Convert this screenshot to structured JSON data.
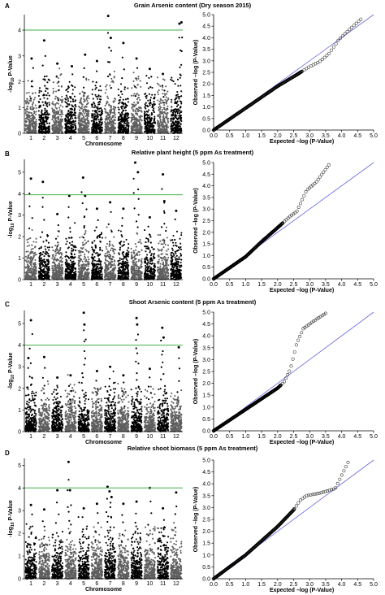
{
  "chart_data": [
    {
      "panel": "A",
      "title": "Grain Arsenic content (Dry season 2015)",
      "manhattan": {
        "type": "scatter",
        "xlabel": "Chromosome",
        "ylabel_main": "-log",
        "ylabel_sub": "10",
        "ylabel_tail": " P-Value",
        "categories": [
          "1",
          "2",
          "3",
          "4",
          "5",
          "6",
          "7",
          "8",
          "9",
          "10",
          "11",
          "12"
        ],
        "ylim": [
          0,
          4.6
        ],
        "yticks": [
          0,
          1,
          2,
          3,
          4
        ],
        "threshold": 4.0,
        "colors": [
          "#5e5e5e",
          "#000000"
        ],
        "peaks": [
          {
            "chr": 1,
            "pos": 0.55,
            "y": 2.9
          },
          {
            "chr": 2,
            "pos": 0.5,
            "y": 3.6
          },
          {
            "chr": 3,
            "pos": 0.5,
            "y": 2.7
          },
          {
            "chr": 4,
            "pos": 0.6,
            "y": 2.6
          },
          {
            "chr": 5,
            "pos": 0.6,
            "y": 3.05
          },
          {
            "chr": 6,
            "pos": 0.5,
            "y": 2.8
          },
          {
            "chr": 7,
            "pos": 0.35,
            "y": 4.55
          },
          {
            "chr": 7,
            "pos": 0.55,
            "y": 3.7
          },
          {
            "chr": 8,
            "pos": 0.5,
            "y": 3.5
          },
          {
            "chr": 9,
            "pos": 0.5,
            "y": 2.9
          },
          {
            "chr": 10,
            "pos": 0.5,
            "y": 2.5
          },
          {
            "chr": 11,
            "pos": 0.5,
            "y": 2.3
          },
          {
            "chr": 12,
            "pos": 0.75,
            "y": 4.25
          },
          {
            "chr": 12,
            "pos": 0.9,
            "y": 4.3
          }
        ]
      },
      "qq": {
        "type": "scatter",
        "xlabel": "Expected –log (P-Value)",
        "ylabel": "Observed –log (P-Value)",
        "xlim": [
          0,
          5.0
        ],
        "ylim": [
          0,
          5.0
        ],
        "ticks": [
          "0.0",
          "0.5",
          "1.0",
          "1.5",
          "2.0",
          "2.5",
          "3.0",
          "3.5",
          "4.0",
          "4.5",
          "5.0"
        ],
        "curve": [
          [
            0,
            0
          ],
          [
            1.0,
            0.95
          ],
          [
            2.0,
            1.9
          ],
          [
            2.6,
            2.4
          ],
          [
            3.0,
            2.75
          ],
          [
            3.3,
            2.95
          ],
          [
            3.6,
            3.3
          ],
          [
            3.9,
            3.9
          ],
          [
            4.2,
            4.3
          ],
          [
            4.6,
            4.8
          ]
        ]
      }
    },
    {
      "panel": "B",
      "title": "Relative plant height (5 ppm As treatment)",
      "manhattan": {
        "type": "scatter",
        "xlabel": "",
        "ylabel_main": "-log",
        "ylabel_sub": "10",
        "ylabel_tail": " P-Value",
        "categories": [
          "1",
          "2",
          "3",
          "4",
          "5",
          "6",
          "7",
          "8",
          "9",
          "10",
          "11",
          "12"
        ],
        "ylim": [
          0,
          5.6
        ],
        "yticks": [
          0,
          1,
          2,
          3,
          4,
          5
        ],
        "threshold": 3.95,
        "colors": [
          "#5e5e5e",
          "#000000"
        ],
        "peaks": [
          {
            "chr": 1,
            "pos": 0.5,
            "y": 4.7
          },
          {
            "chr": 2,
            "pos": 0.4,
            "y": 4.55
          },
          {
            "chr": 3,
            "pos": 0.5,
            "y": 3.05
          },
          {
            "chr": 4,
            "pos": 0.4,
            "y": 3.9
          },
          {
            "chr": 5,
            "pos": 0.45,
            "y": 4.75
          },
          {
            "chr": 5,
            "pos": 0.6,
            "y": 3.9
          },
          {
            "chr": 6,
            "pos": 0.5,
            "y": 3.3
          },
          {
            "chr": 7,
            "pos": 0.5,
            "y": 3.6
          },
          {
            "chr": 8,
            "pos": 0.5,
            "y": 3.3
          },
          {
            "chr": 9,
            "pos": 0.4,
            "y": 5.45
          },
          {
            "chr": 9,
            "pos": 0.6,
            "y": 5.0
          },
          {
            "chr": 10,
            "pos": 0.5,
            "y": 2.9
          },
          {
            "chr": 11,
            "pos": 0.5,
            "y": 4.9
          },
          {
            "chr": 11,
            "pos": 0.6,
            "y": 3.65
          },
          {
            "chr": 12,
            "pos": 0.5,
            "y": 3.2
          }
        ]
      },
      "qq": {
        "type": "scatter",
        "xlabel": "Expected –log (P-Value)",
        "ylabel": "Observed –log (P-Value)",
        "xlim": [
          0,
          5.0
        ],
        "ylim": [
          0,
          5.0
        ],
        "ticks": [
          "0.0",
          "0.5",
          "1.0",
          "1.5",
          "2.0",
          "2.5",
          "3.0",
          "3.5",
          "4.0",
          "4.5",
          "5.0"
        ],
        "curve": [
          [
            0,
            0
          ],
          [
            1.0,
            0.95
          ],
          [
            1.5,
            1.6
          ],
          [
            2.0,
            2.2
          ],
          [
            2.4,
            2.7
          ],
          [
            2.6,
            2.9
          ],
          [
            2.9,
            3.8
          ],
          [
            3.2,
            4.15
          ],
          [
            3.6,
            4.9
          ]
        ]
      }
    },
    {
      "panel": "C",
      "title": "Shoot Arsenic content (5 ppm As treatment)",
      "manhattan": {
        "type": "scatter",
        "xlabel": "Chromosome",
        "ylabel_main": "-log",
        "ylabel_sub": "10",
        "ylabel_tail": " P-Value",
        "categories": [
          "1",
          "2",
          "3",
          "4",
          "5",
          "6",
          "7",
          "8",
          "9",
          "10",
          "11",
          "12"
        ],
        "ylim": [
          0,
          5.6
        ],
        "yticks": [
          0,
          1,
          2,
          3,
          4,
          5
        ],
        "threshold": 4.0,
        "colors": [
          "#000000",
          "#5e5e5e"
        ],
        "peaks": [
          {
            "chr": 1,
            "pos": 0.5,
            "y": 5.15
          },
          {
            "chr": 1,
            "pos": 0.3,
            "y": 3.4
          },
          {
            "chr": 2,
            "pos": 0.5,
            "y": 3.45
          },
          {
            "chr": 3,
            "pos": 0.5,
            "y": 2.5
          },
          {
            "chr": 4,
            "pos": 0.5,
            "y": 2.6
          },
          {
            "chr": 5,
            "pos": 0.5,
            "y": 5.5
          },
          {
            "chr": 5,
            "pos": 0.55,
            "y": 4.95
          },
          {
            "chr": 6,
            "pos": 0.5,
            "y": 2.8
          },
          {
            "chr": 7,
            "pos": 0.5,
            "y": 3.0
          },
          {
            "chr": 8,
            "pos": 0.5,
            "y": 2.6
          },
          {
            "chr": 9,
            "pos": 0.5,
            "y": 5.25
          },
          {
            "chr": 9,
            "pos": 0.55,
            "y": 4.95
          },
          {
            "chr": 10,
            "pos": 0.5,
            "y": 2.9
          },
          {
            "chr": 11,
            "pos": 0.45,
            "y": 4.8
          },
          {
            "chr": 11,
            "pos": 0.55,
            "y": 4.35
          },
          {
            "chr": 12,
            "pos": 0.7,
            "y": 3.9
          }
        ]
      },
      "qq": {
        "type": "scatter",
        "xlabel": "Expected –log (P-Value)",
        "ylabel": "Observed –log (P-Value)",
        "xlim": [
          0,
          5.0
        ],
        "ylim": [
          0,
          5.0
        ],
        "ticks": [
          "0.0",
          "0.5",
          "1.0",
          "1.5",
          "2.0",
          "2.5",
          "3.0",
          "3.5",
          "4.0",
          "4.5",
          "5.0"
        ],
        "curve": [
          [
            0,
            0
          ],
          [
            1.0,
            0.9
          ],
          [
            1.5,
            1.35
          ],
          [
            2.0,
            1.8
          ],
          [
            2.2,
            2.05
          ],
          [
            2.4,
            2.6
          ],
          [
            2.6,
            3.7
          ],
          [
            2.8,
            4.3
          ],
          [
            3.1,
            4.6
          ],
          [
            3.5,
            4.95
          ]
        ]
      }
    },
    {
      "panel": "D",
      "title": "Relative shoot biomass (5 ppm As treatment)",
      "manhattan": {
        "type": "scatter",
        "xlabel": "Chromosome",
        "ylabel_main": "-log",
        "ylabel_sub": "10",
        "ylabel_tail": " P-Value",
        "categories": [
          "1",
          "2",
          "3",
          "4",
          "5",
          "6",
          "7",
          "8",
          "9",
          "10",
          "11",
          "12"
        ],
        "ylim": [
          0,
          5.3
        ],
        "yticks": [
          0,
          1,
          2,
          3,
          4,
          5
        ],
        "threshold": 4.0,
        "colors": [
          "#000000",
          "#5e5e5e"
        ],
        "peaks": [
          {
            "chr": 1,
            "pos": 0.5,
            "y": 3.25
          },
          {
            "chr": 2,
            "pos": 0.5,
            "y": 3.05
          },
          {
            "chr": 3,
            "pos": 0.5,
            "y": 3.9
          },
          {
            "chr": 4,
            "pos": 0.35,
            "y": 5.15
          },
          {
            "chr": 4,
            "pos": 0.45,
            "y": 3.9
          },
          {
            "chr": 5,
            "pos": 0.5,
            "y": 3.1
          },
          {
            "chr": 6,
            "pos": 0.5,
            "y": 3.3
          },
          {
            "chr": 7,
            "pos": 0.3,
            "y": 4.05
          },
          {
            "chr": 7,
            "pos": 0.45,
            "y": 3.85
          },
          {
            "chr": 7,
            "pos": 0.6,
            "y": 3.6
          },
          {
            "chr": 8,
            "pos": 0.5,
            "y": 3.3
          },
          {
            "chr": 9,
            "pos": 0.5,
            "y": 3.4
          },
          {
            "chr": 10,
            "pos": 0.5,
            "y": 4.0
          },
          {
            "chr": 11,
            "pos": 0.5,
            "y": 3.1
          },
          {
            "chr": 12,
            "pos": 0.5,
            "y": 3.8
          }
        ]
      },
      "qq": {
        "type": "scatter",
        "xlabel": "Expected –log (P-Value)",
        "ylabel": "Observed –log (P-Value)",
        "xlim": [
          0,
          5.0
        ],
        "ylim": [
          0,
          5.0
        ],
        "ticks": [
          "0.0",
          "0.5",
          "1.0",
          "1.5",
          "2.0",
          "2.5",
          "3.0",
          "3.5",
          "4.0",
          "4.5",
          "5.0"
        ],
        "curve": [
          [
            0,
            0
          ],
          [
            1.0,
            1.0
          ],
          [
            2.0,
            2.2
          ],
          [
            2.5,
            2.9
          ],
          [
            2.7,
            3.3
          ],
          [
            2.9,
            3.5
          ],
          [
            3.3,
            3.6
          ],
          [
            3.8,
            3.8
          ],
          [
            4.2,
            4.9
          ]
        ]
      }
    }
  ],
  "colors": {
    "threshold_line": "#3faf4a",
    "diagonal_line": "#6666dd"
  }
}
